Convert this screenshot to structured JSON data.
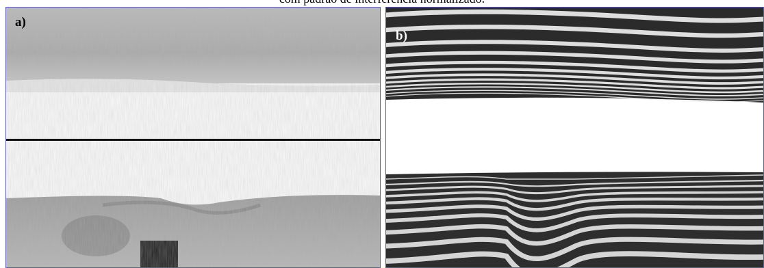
{
  "caption": "com padrão de interferência normalizado.",
  "panels": [
    {
      "label": "a)"
    },
    {
      "label": "b)"
    }
  ]
}
